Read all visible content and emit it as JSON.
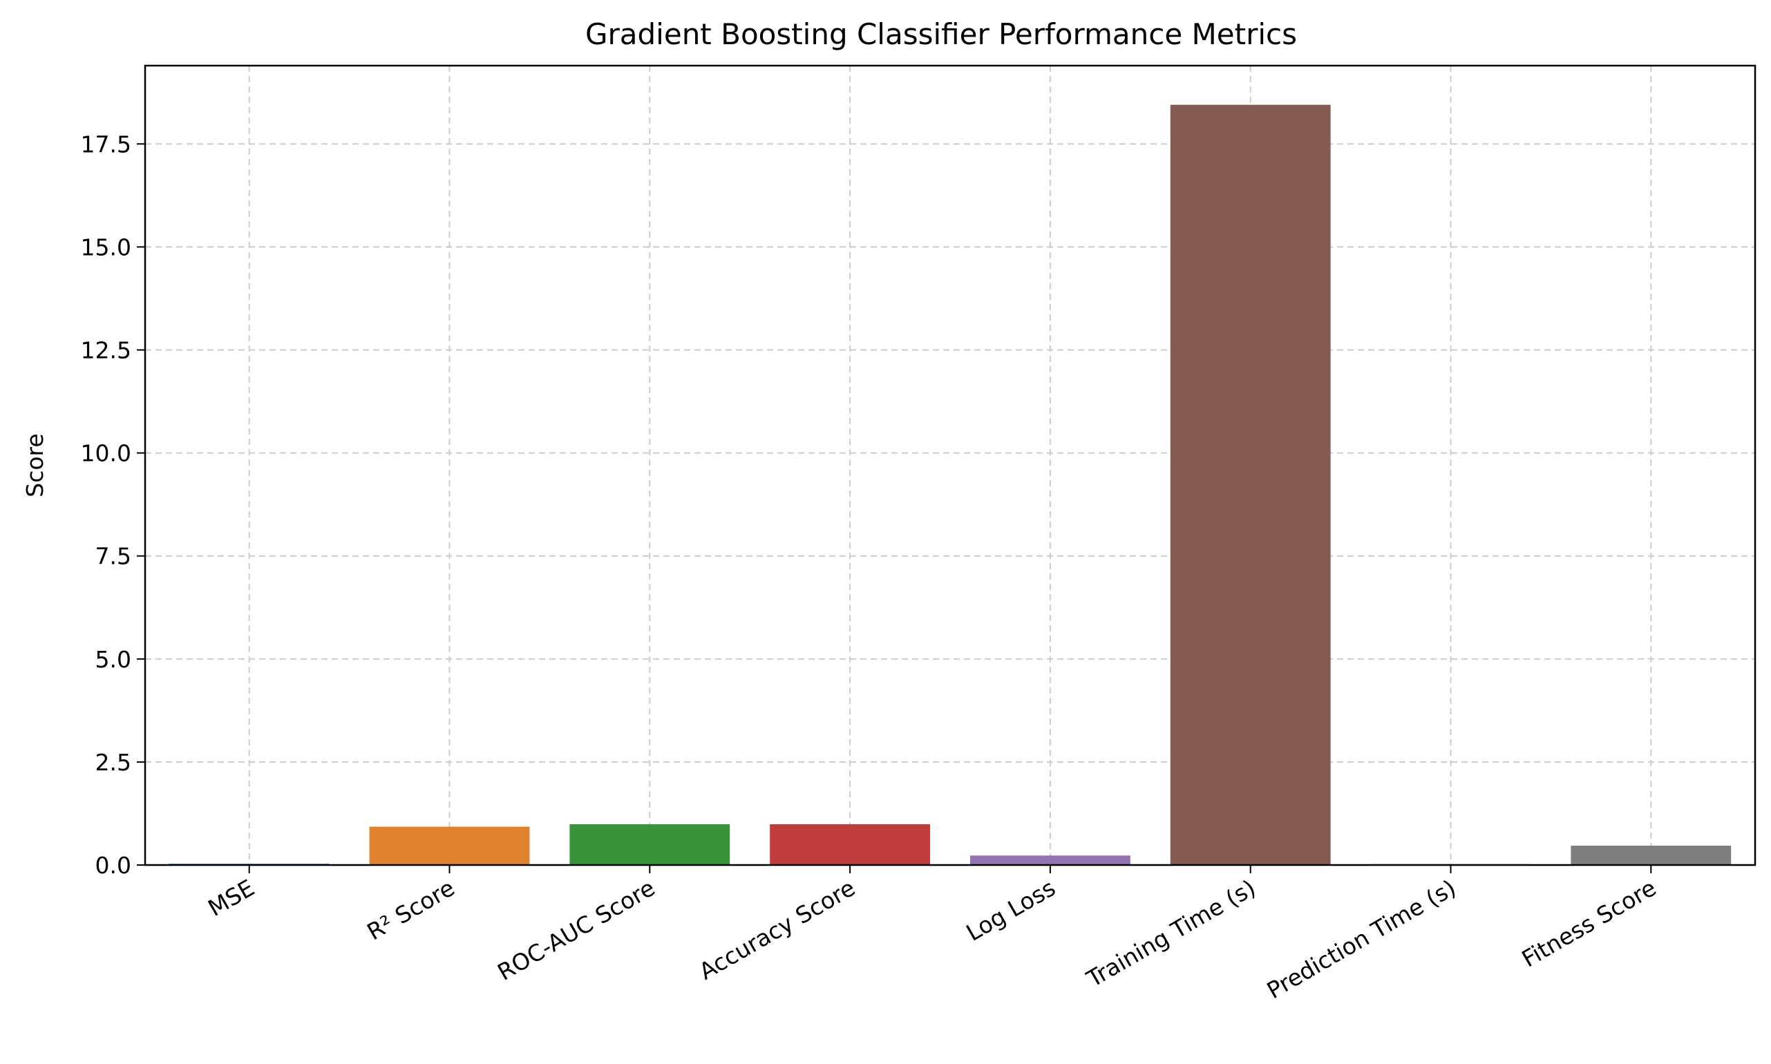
{
  "chart_data": {
    "type": "bar",
    "title": "Gradient Boosting Classifier Performance Metrics",
    "xlabel": "",
    "ylabel": "Score",
    "categories": [
      "MSE",
      "R² Score",
      "ROC-AUC Score",
      "Accuracy Score",
      "Log Loss",
      "Training Time (s)",
      "Prediction Time (s)",
      "Fitness Score"
    ],
    "values": [
      0.03,
      0.93,
      0.99,
      0.99,
      0.23,
      18.45,
      0.01,
      0.47
    ],
    "colors": [
      "#1f77b4",
      "#e08330",
      "#3a923a",
      "#c03d3e",
      "#9372b2",
      "#845b53",
      "#d57fbe",
      "#7f7f7f"
    ],
    "ylim": [
      0,
      19.4
    ],
    "yticks": [
      0.0,
      2.5,
      5.0,
      7.5,
      10.0,
      12.5,
      15.0,
      17.5
    ],
    "ytick_labels": [
      "0.0",
      "2.5",
      "5.0",
      "7.5",
      "10.0",
      "12.5",
      "15.0",
      "17.5"
    ],
    "grid": true,
    "grid_style": "dashed",
    "xtick_rotation": 30
  }
}
